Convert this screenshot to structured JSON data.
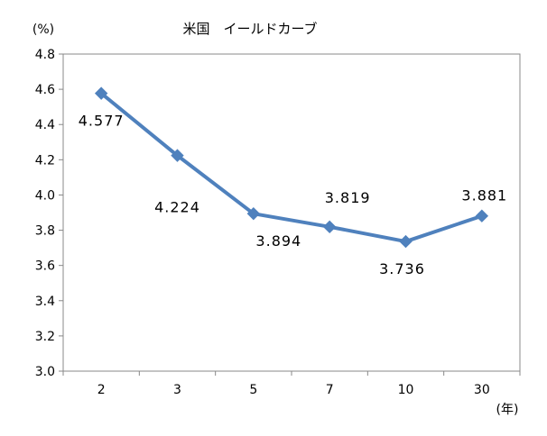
{
  "chart_data": {
    "type": "line",
    "title": "米国　イールドカーブ",
    "ylabel": "(%)",
    "xlabel": "(年)",
    "categories": [
      "2",
      "3",
      "5",
      "7",
      "10",
      "30"
    ],
    "series": [
      {
        "values": [
          4.577,
          4.224,
          3.894,
          3.819,
          3.736,
          3.881
        ],
        "data_labels": [
          "4.577",
          "4.224",
          "3.894",
          "3.819",
          "3.736",
          "3.881"
        ],
        "color": "#4f81bd",
        "marker": "diamond"
      }
    ],
    "ylim": [
      3.0,
      4.8
    ],
    "yticks": [
      "3.0",
      "3.2",
      "3.4",
      "3.6",
      "3.8",
      "4.0",
      "4.2",
      "4.4",
      "4.6",
      "4.8"
    ],
    "grid": false,
    "legend": "none"
  }
}
